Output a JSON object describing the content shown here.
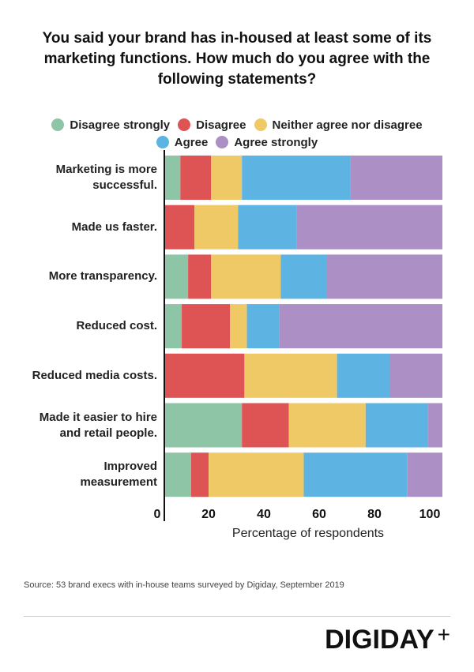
{
  "chart_data": {
    "type": "bar",
    "orientation": "horizontal-stacked",
    "title": "You said your brand has in-housed at least some of its marketing functions. How much do you agree with the following statements?",
    "xlabel": "Percentage of respondents",
    "ylabel": "",
    "xlim": [
      0,
      100
    ],
    "xticks": [
      0,
      20,
      40,
      60,
      80,
      100
    ],
    "legend_position": "top",
    "categories": [
      [
        "Marketing is more",
        "successful."
      ],
      [
        "Made us faster."
      ],
      [
        "More transparency."
      ],
      [
        "Reduced cost."
      ],
      [
        "Reduced media costs."
      ],
      [
        "Made it easier to hire",
        "and retail people."
      ],
      [
        "Improved",
        "measurement"
      ]
    ],
    "series": [
      {
        "name": "Disagree strongly",
        "color": "#8ec5a6",
        "values": [
          5.5,
          0,
          8.3,
          6,
          0,
          27.7,
          9.4
        ]
      },
      {
        "name": "Disagree",
        "color": "#de5354",
        "values": [
          11.1,
          10.6,
          8.3,
          17.4,
          28.6,
          16.9,
          6.3
        ]
      },
      {
        "name": "Neither agree nor disagree",
        "color": "#efc966",
        "values": [
          11.1,
          15.7,
          25.1,
          6.1,
          33.4,
          27.7,
          34.3
        ]
      },
      {
        "name": "Agree",
        "color": "#5db4e3",
        "values": [
          39.0,
          21.1,
          16.7,
          11.7,
          18.9,
          22.4,
          37.4
        ]
      },
      {
        "name": "Agree strongly",
        "color": "#ab8fc5",
        "values": [
          33.3,
          52.6,
          41.6,
          58.8,
          19.1,
          5.3,
          12.6
        ]
      }
    ]
  },
  "footer": {
    "source": "Source: 53 brand execs with in-house teams surveyed by Digiday, September 2019",
    "logo": "DIGIDAY",
    "logo_plus": "+"
  }
}
